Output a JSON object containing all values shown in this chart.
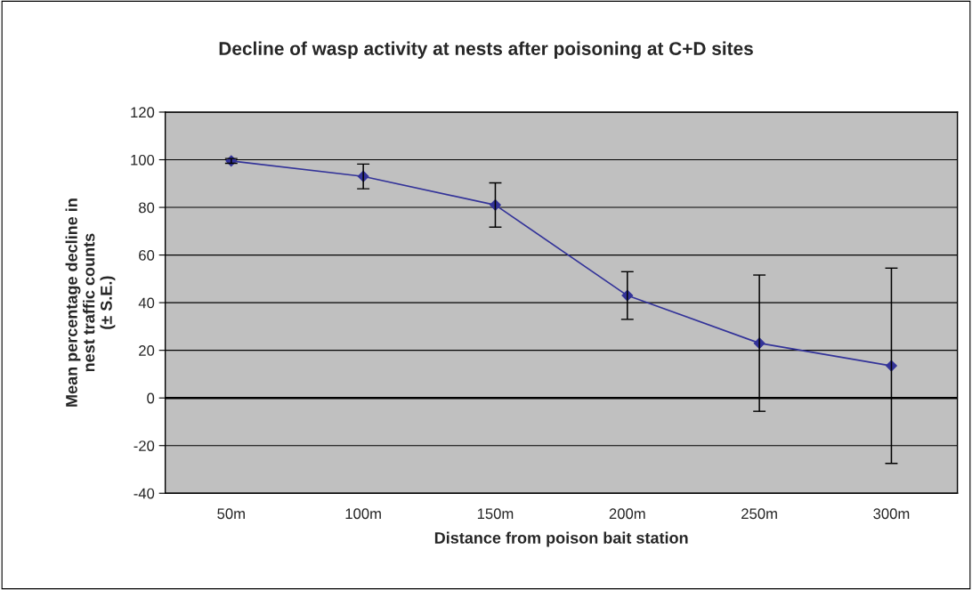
{
  "chart_data": {
    "type": "line",
    "title": "Decline of wasp activity at nests after poisoning at C+D sites",
    "xlabel": "Distance from poison bait station",
    "ylabel": "Mean percentage decline in\nnest traffic counts\n(± S.E.)",
    "categories": [
      "50m",
      "100m",
      "150m",
      "200m",
      "250m",
      "300m"
    ],
    "series": [
      {
        "color": "#333399",
        "values": [
          99.5,
          93,
          81,
          43,
          23,
          13.5
        ],
        "errors": [
          1,
          5.2,
          9.3,
          10,
          28.6,
          41
        ]
      }
    ],
    "ylim": [
      -40,
      120
    ],
    "yticks": [
      -40,
      -20,
      0,
      20,
      40,
      60,
      80,
      100,
      120
    ],
    "ref_lines": [
      {
        "axis": "y",
        "value": 0,
        "color": "#000000"
      }
    ],
    "grid": "y",
    "marker": "diamond",
    "line_style": "solid"
  }
}
